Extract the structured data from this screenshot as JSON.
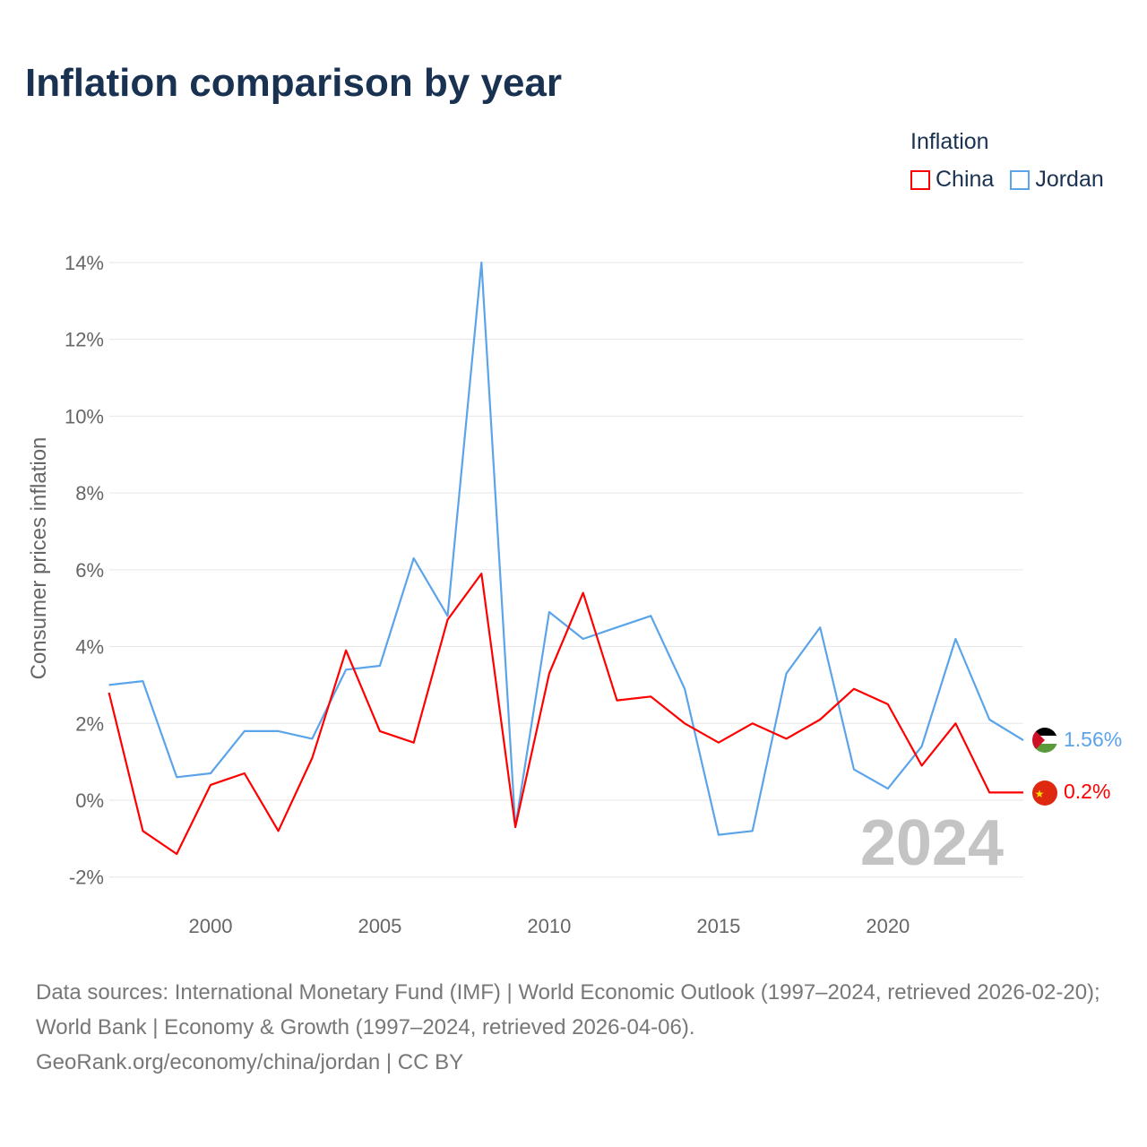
{
  "title": "Inflation comparison by year",
  "legend": {
    "title": "Inflation",
    "items": [
      {
        "name": "China",
        "color": "#ff0000"
      },
      {
        "name": "Jordan",
        "color": "#5ba4ea"
      }
    ]
  },
  "year_watermark": "2024",
  "end_labels": {
    "china": "0.2%",
    "jordan": "1.56%"
  },
  "footer": {
    "sources": "Data sources: International Monetary Fund (IMF) | World Economic Outlook (1997–2024, retrieved 2026-02-20); World Bank | Economy & Growth (1997–2024, retrieved 2026-04-06).",
    "credit": "GeoRank.org/economy/china/jordan | CC BY"
  },
  "chart_data": {
    "type": "line",
    "title": "Inflation comparison by year",
    "xlabel": "",
    "ylabel": "Consumer prices inflation",
    "x": [
      1997,
      1998,
      1999,
      2000,
      2001,
      2002,
      2003,
      2004,
      2005,
      2006,
      2007,
      2008,
      2009,
      2010,
      2011,
      2012,
      2013,
      2014,
      2015,
      2016,
      2017,
      2018,
      2019,
      2020,
      2021,
      2022,
      2023,
      2024
    ],
    "xlim": [
      1997,
      2024
    ],
    "ylim": [
      -2.7,
      14.5
    ],
    "xticks": [
      2000,
      2005,
      2010,
      2015,
      2020
    ],
    "yticks": [
      -2,
      0,
      2,
      4,
      6,
      8,
      10,
      12,
      14
    ],
    "ytick_labels": [
      "-2%",
      "0%",
      "2%",
      "4%",
      "6%",
      "8%",
      "10%",
      "12%",
      "14%"
    ],
    "grid": true,
    "legend_position": "top-right",
    "series": [
      {
        "name": "China",
        "color": "#ff0000",
        "values": [
          2.8,
          -0.8,
          -1.4,
          0.4,
          0.7,
          -0.8,
          1.1,
          3.9,
          1.8,
          1.5,
          4.7,
          5.9,
          -0.7,
          3.3,
          5.4,
          2.6,
          2.7,
          2.0,
          1.5,
          2.0,
          1.6,
          2.1,
          2.9,
          2.5,
          0.9,
          2.0,
          0.2,
          0.2
        ]
      },
      {
        "name": "Jordan",
        "color": "#5ba4ea",
        "values": [
          3.0,
          3.1,
          0.6,
          0.7,
          1.8,
          1.8,
          1.6,
          3.4,
          3.5,
          6.3,
          4.8,
          14.0,
          -0.7,
          4.9,
          4.2,
          4.5,
          4.8,
          2.9,
          -0.9,
          -0.8,
          3.3,
          4.5,
          0.8,
          0.3,
          1.4,
          4.2,
          2.1,
          1.56
        ]
      }
    ]
  }
}
